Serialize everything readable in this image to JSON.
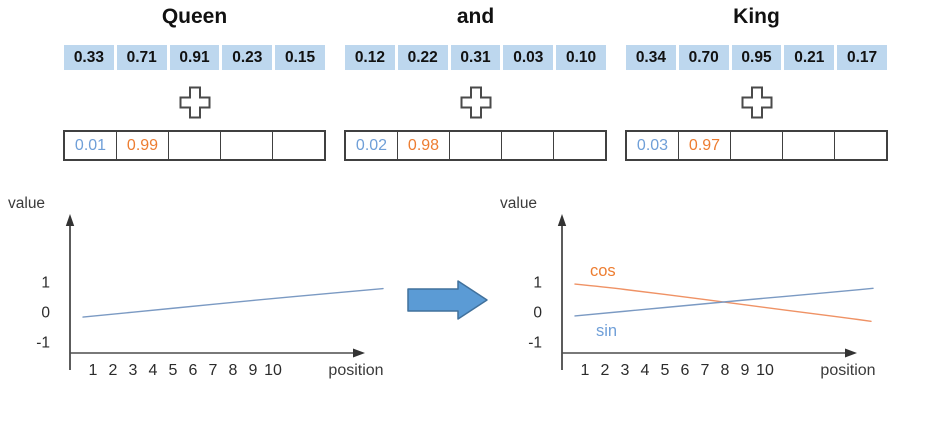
{
  "diagram": {
    "words": [
      {
        "title": "Queen",
        "embedding": [
          "0.33",
          "0.71",
          "0.91",
          "0.23",
          "0.15"
        ],
        "positional": [
          "0.01",
          "0.99",
          "",
          "",
          ""
        ]
      },
      {
        "title": "and",
        "embedding": [
          "0.12",
          "0.22",
          "0.31",
          "0.03",
          "0.10"
        ],
        "positional": [
          "0.02",
          "0.98",
          "",
          "",
          ""
        ]
      },
      {
        "title": "King",
        "embedding": [
          "0.34",
          "0.70",
          "0.95",
          "0.21",
          "0.17"
        ],
        "positional": [
          "0.03",
          "0.97",
          "",
          "",
          ""
        ]
      }
    ],
    "plus_icon": "outlined-plus",
    "arrow_icon": "solid-right-block-arrow"
  },
  "colors": {
    "embedding_cell_bg": "#bdd7ee",
    "text": "#1a1a1a",
    "pe_row_border": "#404040",
    "pe_sin_text": "#6f9fd8",
    "pe_cos_text": "#ed7d31",
    "sin_line": "#7b9ac3",
    "cos_line": "#ef9265",
    "arrow_fill": "#5b9bd5",
    "arrow_border": "#41719c",
    "axis": "#333333"
  },
  "chart_data": [
    {
      "type": "line",
      "title": "",
      "ylabel": "value",
      "xlabel": "position",
      "xticks": [
        1,
        2,
        3,
        4,
        5,
        6,
        7,
        8,
        9,
        10
      ],
      "yticks": [
        1,
        0,
        -1
      ],
      "ylim": [
        -1.5,
        1.5
      ],
      "grid": false,
      "legend": "none",
      "series": [
        {
          "name": "sin",
          "show_label": false,
          "line_color": "#7b9ac3",
          "label_color": "#6f9fd8",
          "x": [
            0.5,
            2,
            4,
            6,
            8,
            10,
            12,
            14,
            15.5
          ],
          "values": [
            -0.17,
            -0.07,
            0.06,
            0.19,
            0.32,
            0.45,
            0.57,
            0.69,
            0.78
          ]
        }
      ]
    },
    {
      "type": "line",
      "title": "",
      "ylabel": "value",
      "xlabel": "position",
      "xticks": [
        1,
        2,
        3,
        4,
        5,
        6,
        7,
        8,
        9,
        10
      ],
      "yticks": [
        1,
        0,
        -1
      ],
      "ylim": [
        -1.5,
        1.5
      ],
      "grid": false,
      "legend": "inline-labels",
      "series": [
        {
          "name": "cos",
          "show_label": true,
          "line_color": "#ef9265",
          "label_color": "#ed7d31",
          "x": [
            0.5,
            2,
            4,
            6,
            8,
            10,
            12,
            14,
            15.3
          ],
          "values": [
            0.93,
            0.83,
            0.67,
            0.5,
            0.33,
            0.15,
            -0.02,
            -0.19,
            -0.31
          ]
        },
        {
          "name": "sin",
          "show_label": true,
          "line_color": "#7b9ac3",
          "label_color": "#6f9fd8",
          "x": [
            0.5,
            2,
            4,
            6,
            8,
            10,
            12,
            14,
            15.4
          ],
          "values": [
            -0.13,
            -0.04,
            0.09,
            0.21,
            0.34,
            0.46,
            0.58,
            0.7,
            0.79
          ]
        }
      ]
    }
  ]
}
